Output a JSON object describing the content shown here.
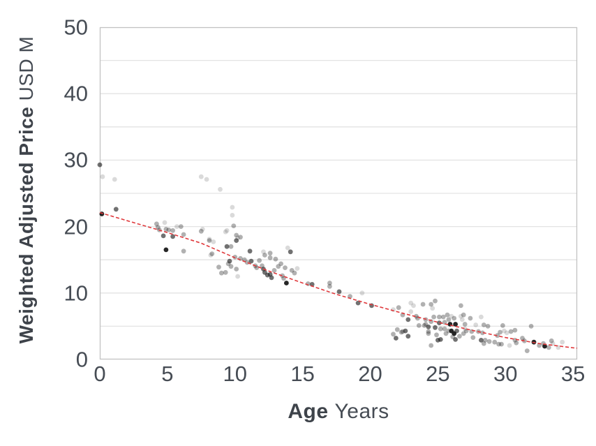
{
  "chart_data": {
    "type": "scatter",
    "xlabel_bold": "Age",
    "xlabel_unit": "Years",
    "ylabel_bold": "Weighted Adjusted Price",
    "ylabel_unit": "USD M",
    "xlim": [
      0,
      35.3
    ],
    "ylim": [
      0,
      50
    ],
    "x_ticks": [
      0,
      5,
      10,
      15,
      20,
      25,
      30,
      35
    ],
    "y_ticks": [
      0,
      10,
      20,
      30,
      40,
      50
    ],
    "gridline_step_y": 5,
    "grid": "horizontal-only",
    "legend": "none",
    "colors": {
      "point": "#1a1a1a",
      "trend": "#e0393c",
      "gridline": "#e3e3e3",
      "axis_border": "#c2c2c2",
      "tick_text": "#464c54",
      "title_text": "#3e434a"
    },
    "shade_opacity": {
      "1": 0.16,
      "2": 0.34,
      "3": 0.62,
      "4": 0.95
    },
    "trend_line": {
      "style": "dashed",
      "points": [
        [
          0,
          22.1
        ],
        [
          2.5,
          20.6
        ],
        [
          5,
          19.1
        ],
        [
          7.5,
          17.5
        ],
        [
          10,
          15.3
        ],
        [
          12.5,
          13.3
        ],
        [
          15,
          11.5
        ],
        [
          17.5,
          9.8
        ],
        [
          20,
          8.3
        ],
        [
          22.5,
          6.9
        ],
        [
          25,
          5.6
        ],
        [
          27.5,
          4.4
        ],
        [
          30,
          3.3
        ],
        [
          32.5,
          2.4
        ],
        [
          35,
          1.75
        ],
        [
          35.3,
          1.7
        ]
      ]
    },
    "points": [
      [
        0,
        29.3,
        3
      ],
      [
        0.2,
        27.5,
        1
      ],
      [
        1.1,
        27.1,
        1
      ],
      [
        0.15,
        21.9,
        4
      ],
      [
        1.2,
        22.6,
        3
      ],
      [
        4.2,
        20.4,
        2
      ],
      [
        4.3,
        19.9,
        2
      ],
      [
        4.4,
        19.5,
        2
      ],
      [
        4.8,
        20.6,
        1
      ],
      [
        4.9,
        19.6,
        2
      ],
      [
        5.1,
        19.5,
        2
      ],
      [
        5.4,
        19.4,
        2
      ],
      [
        5.7,
        20.0,
        1
      ],
      [
        6.0,
        20.0,
        2
      ],
      [
        6.2,
        18.8,
        2
      ],
      [
        5.4,
        18.5,
        3
      ],
      [
        4.9,
        16.5,
        4
      ],
      [
        4.7,
        18.6,
        3
      ],
      [
        6.2,
        16.3,
        2
      ],
      [
        7.5,
        27.5,
        1
      ],
      [
        7.9,
        27.1,
        1
      ],
      [
        8.9,
        25.6,
        1
      ],
      [
        9.8,
        22.9,
        1
      ],
      [
        9.8,
        21.7,
        1
      ],
      [
        7.5,
        19.3,
        2
      ],
      [
        7.6,
        19.6,
        1
      ],
      [
        8.1,
        18.1,
        1
      ],
      [
        8.4,
        17.7,
        1
      ],
      [
        8.2,
        15.7,
        1
      ],
      [
        8.1,
        17.9,
        2
      ],
      [
        8.3,
        15.9,
        2
      ],
      [
        8.8,
        13.9,
        2
      ],
      [
        9.0,
        13.0,
        2
      ],
      [
        9.3,
        13.1,
        2
      ],
      [
        9.4,
        17.0,
        3
      ],
      [
        9.7,
        17.0,
        2
      ],
      [
        9.3,
        19.2,
        1
      ],
      [
        9.4,
        19.4,
        1
      ],
      [
        9.9,
        20.1,
        2
      ],
      [
        10.1,
        17.9,
        3
      ],
      [
        10.1,
        18.7,
        2
      ],
      [
        10.4,
        18.4,
        2
      ],
      [
        9.5,
        14.4,
        2
      ],
      [
        9.6,
        14.8,
        3
      ],
      [
        9.7,
        14.0,
        2
      ],
      [
        10.1,
        13.6,
        2
      ],
      [
        10.2,
        12.5,
        1
      ],
      [
        10.4,
        15.2,
        2
      ],
      [
        10.7,
        15.0,
        2
      ],
      [
        10.9,
        14.6,
        2
      ],
      [
        10.2,
        18.3,
        1
      ],
      [
        10.0,
        15.4,
        2
      ],
      [
        11.1,
        16.3,
        3
      ],
      [
        11.2,
        14.8,
        3
      ],
      [
        11.5,
        14.1,
        2
      ],
      [
        11.6,
        13.8,
        2
      ],
      [
        11.8,
        14.9,
        2
      ],
      [
        12.0,
        14.1,
        2
      ],
      [
        12.1,
        13.6,
        3
      ],
      [
        12.2,
        13.1,
        3
      ],
      [
        12.4,
        12.7,
        3
      ],
      [
        12.6,
        12.8,
        3
      ],
      [
        12.7,
        12.3,
        3
      ],
      [
        12.9,
        13.4,
        2
      ],
      [
        12.2,
        15.7,
        2
      ],
      [
        12.6,
        15.3,
        2
      ],
      [
        12.1,
        16.2,
        1
      ],
      [
        12.6,
        16.0,
        2
      ],
      [
        13.0,
        15.1,
        2
      ],
      [
        13.2,
        14.0,
        2
      ],
      [
        13.4,
        14.4,
        2
      ],
      [
        13.5,
        12.6,
        2
      ],
      [
        13.6,
        12.2,
        2
      ],
      [
        13.7,
        13.8,
        2
      ],
      [
        13.9,
        16.8,
        1
      ],
      [
        14.1,
        16.2,
        3
      ],
      [
        14.2,
        13.4,
        2
      ],
      [
        14.4,
        13.0,
        2
      ],
      [
        14.6,
        13.7,
        1
      ],
      [
        13.8,
        11.5,
        4
      ],
      [
        15.4,
        11.4,
        2
      ],
      [
        15.7,
        11.3,
        3
      ],
      [
        17.0,
        11.5,
        2
      ],
      [
        17.0,
        11.0,
        2
      ],
      [
        17.7,
        10.2,
        3
      ],
      [
        18.5,
        9.5,
        2
      ],
      [
        19.4,
        10.0,
        1
      ],
      [
        19.1,
        8.5,
        3
      ],
      [
        20.1,
        8.1,
        3
      ],
      [
        21.7,
        7.5,
        1
      ],
      [
        22.1,
        7.8,
        2
      ],
      [
        21.7,
        3.8,
        2
      ],
      [
        21.9,
        3.2,
        3
      ],
      [
        22.3,
        4.1,
        2
      ],
      [
        22.4,
        6.7,
        2
      ],
      [
        22.6,
        4.3,
        3
      ],
      [
        22.8,
        3.5,
        3
      ],
      [
        22.8,
        6.0,
        3
      ],
      [
        22.0,
        4.5,
        2
      ],
      [
        22.4,
        4.2,
        2
      ],
      [
        23.0,
        7.2,
        1
      ],
      [
        23.2,
        8.1,
        1
      ],
      [
        23.0,
        8.5,
        1
      ],
      [
        23.4,
        6.5,
        2
      ],
      [
        23.5,
        6.2,
        2
      ],
      [
        23.6,
        5.1,
        2
      ],
      [
        23.9,
        8.3,
        2
      ],
      [
        24.0,
        5.1,
        2
      ],
      [
        24.1,
        5.3,
        2
      ],
      [
        24.1,
        6.0,
        2
      ],
      [
        24.3,
        4.9,
        3
      ],
      [
        24.3,
        4.2,
        2
      ],
      [
        24.3,
        3.9,
        2
      ],
      [
        24.5,
        5.7,
        2
      ],
      [
        24.5,
        8.3,
        2
      ],
      [
        24.6,
        7.7,
        1
      ],
      [
        24.7,
        6.4,
        2
      ],
      [
        24.8,
        8.8,
        2
      ],
      [
        24.8,
        4.8,
        3
      ],
      [
        24.9,
        3.7,
        2
      ],
      [
        24.5,
        2.1,
        2
      ],
      [
        25.0,
        2.9,
        3
      ],
      [
        25.1,
        5.5,
        3
      ],
      [
        25.1,
        6.4,
        2
      ],
      [
        25.2,
        4.6,
        2
      ],
      [
        25.2,
        3.0,
        3
      ],
      [
        25.4,
        6.4,
        2
      ],
      [
        25.5,
        5.6,
        2
      ],
      [
        25.5,
        4.6,
        2
      ],
      [
        25.6,
        3.9,
        2
      ],
      [
        25.7,
        6.7,
        2
      ],
      [
        25.8,
        4.3,
        2
      ],
      [
        25.8,
        6.0,
        2
      ],
      [
        25.9,
        5.3,
        4
      ],
      [
        26.0,
        4.3,
        4
      ],
      [
        26.1,
        3.4,
        2
      ],
      [
        26.0,
        6.5,
        1
      ],
      [
        26.2,
        6.2,
        2
      ],
      [
        26.3,
        5.3,
        4
      ],
      [
        26.2,
        3.9,
        4
      ],
      [
        26.3,
        3.0,
        3
      ],
      [
        26.4,
        4.3,
        3
      ],
      [
        26.6,
        3.5,
        2
      ],
      [
        26.7,
        8.1,
        2
      ],
      [
        26.7,
        6.5,
        1
      ],
      [
        26.8,
        6.0,
        1
      ],
      [
        26.9,
        6.7,
        2
      ],
      [
        27.0,
        5.3,
        2
      ],
      [
        27.1,
        4.3,
        2
      ],
      [
        27.0,
        4.6,
        1
      ],
      [
        26.9,
        3.9,
        2
      ],
      [
        27.4,
        6.2,
        2
      ],
      [
        27.5,
        4.2,
        2
      ],
      [
        27.6,
        3.3,
        2
      ],
      [
        27.8,
        5.2,
        1
      ],
      [
        28.0,
        4.2,
        2
      ],
      [
        28.2,
        6.4,
        1
      ],
      [
        28.3,
        4.0,
        2
      ],
      [
        28.4,
        5.2,
        2
      ],
      [
        28.7,
        5.0,
        2
      ],
      [
        28.2,
        2.9,
        3
      ],
      [
        28.4,
        2.4,
        2
      ],
      [
        28.5,
        2.9,
        2
      ],
      [
        28.8,
        2.7,
        2
      ],
      [
        29.2,
        2.6,
        2
      ],
      [
        29.4,
        3.6,
        2
      ],
      [
        29.5,
        2.3,
        2
      ],
      [
        29.7,
        2.3,
        2
      ],
      [
        29.6,
        4.1,
        2
      ],
      [
        29.8,
        5.1,
        2
      ],
      [
        29.9,
        4.3,
        1
      ],
      [
        30.1,
        4.0,
        1
      ],
      [
        30.3,
        2.1,
        1
      ],
      [
        30.7,
        4.4,
        2
      ],
      [
        30.8,
        2.5,
        2
      ],
      [
        30.7,
        2.9,
        2
      ],
      [
        30.4,
        4.2,
        2
      ],
      [
        31.25,
        3.2,
        2
      ],
      [
        31.4,
        2.8,
        2
      ],
      [
        31.6,
        1.3,
        2
      ],
      [
        31.9,
        5.0,
        2
      ],
      [
        32.1,
        2.6,
        4
      ],
      [
        32.5,
        2.1,
        2
      ],
      [
        32.8,
        2.4,
        2
      ],
      [
        32.9,
        2.0,
        4
      ],
      [
        33.2,
        1.8,
        2
      ],
      [
        33.4,
        2.8,
        2
      ],
      [
        33.5,
        2.4,
        1
      ],
      [
        33.9,
        1.8,
        1
      ],
      [
        34.2,
        2.6,
        1
      ]
    ]
  }
}
